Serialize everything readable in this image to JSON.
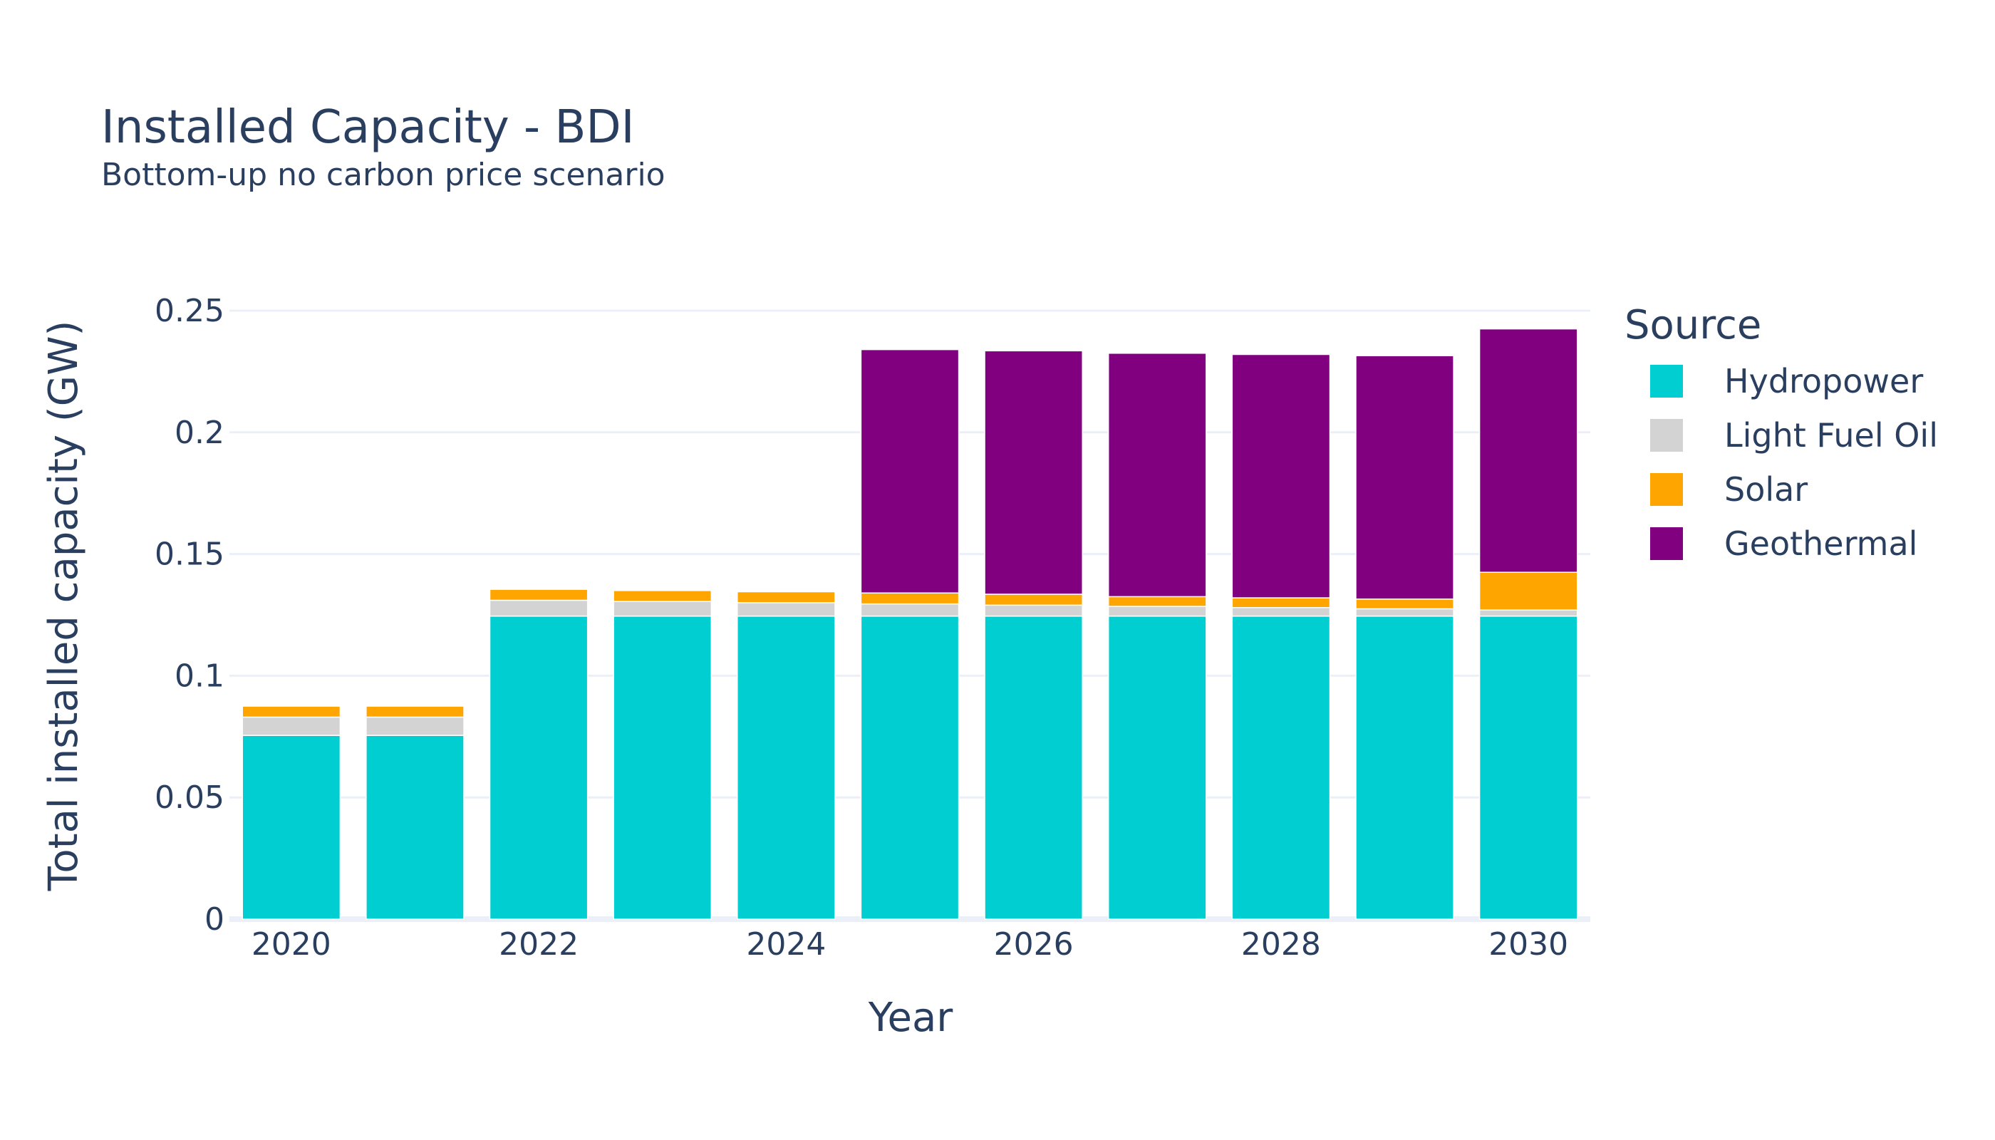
{
  "chart_data": {
    "type": "bar",
    "stacked": true,
    "title": "Installed Capacity - BDI",
    "subtitle": "Bottom-up no carbon price scenario",
    "xlabel": "Year",
    "ylabel": "Total installed capacity (GW)",
    "ylim": [
      0,
      0.262
    ],
    "y_ticks": [
      0,
      0.05,
      0.1,
      0.15,
      0.2,
      0.25
    ],
    "y_tick_labels": [
      "0",
      "0.05",
      "0.1",
      "0.15",
      "0.2",
      "0.25"
    ],
    "x_tick_labels": [
      "2020",
      "2022",
      "2024",
      "2026",
      "2028",
      "2030"
    ],
    "grid": true,
    "legend_title": "Source",
    "legend_position": "right",
    "categories": [
      2020,
      2021,
      2022,
      2023,
      2024,
      2025,
      2026,
      2027,
      2028,
      2029,
      2030
    ],
    "series": [
      {
        "name": "Hydropower",
        "color": "#00CED1",
        "values": [
          0.0755,
          0.0755,
          0.1245,
          0.1245,
          0.1245,
          0.1245,
          0.1245,
          0.1245,
          0.1245,
          0.1245,
          0.1245
        ]
      },
      {
        "name": "Light Fuel Oil",
        "color": "#D3D3D3",
        "values": [
          0.0075,
          0.0075,
          0.0065,
          0.006,
          0.0055,
          0.005,
          0.0045,
          0.004,
          0.0035,
          0.003,
          0.0025
        ]
      },
      {
        "name": "Solar",
        "color": "#FFA500",
        "values": [
          0.0045,
          0.0045,
          0.0045,
          0.0045,
          0.0045,
          0.0045,
          0.0045,
          0.004,
          0.004,
          0.004,
          0.0155
        ]
      },
      {
        "name": "Geothermal",
        "color": "#800080",
        "values": [
          0,
          0,
          0,
          0,
          0,
          0.1,
          0.1,
          0.1,
          0.1,
          0.1,
          0.1
        ]
      }
    ]
  }
}
